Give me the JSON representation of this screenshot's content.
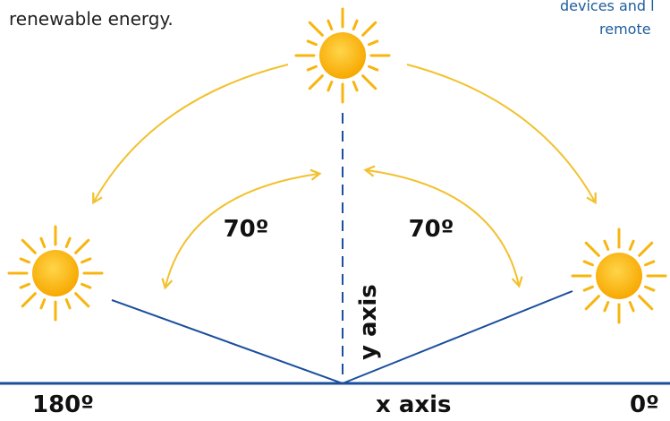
{
  "header": {
    "text": "renewable energy."
  },
  "note": {
    "lines": [
      "devices and l",
      "remote"
    ]
  },
  "angles": {
    "left": "70º",
    "right": "70º"
  },
  "axes": {
    "y": "y axis",
    "x": "x axis"
  },
  "degrees": {
    "left": "180º",
    "right": "0º"
  }
}
